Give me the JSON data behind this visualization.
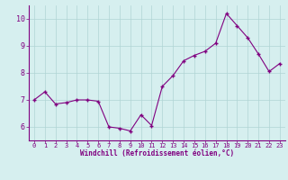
{
  "x": [
    0,
    1,
    2,
    3,
    4,
    5,
    6,
    7,
    8,
    9,
    10,
    11,
    12,
    13,
    14,
    15,
    16,
    17,
    18,
    19,
    20,
    21,
    22,
    23
  ],
  "y": [
    7.0,
    7.3,
    6.85,
    6.9,
    7.0,
    7.0,
    6.95,
    6.0,
    5.95,
    5.85,
    6.45,
    6.05,
    7.5,
    7.9,
    8.45,
    8.65,
    8.8,
    9.1,
    10.2,
    9.75,
    9.3,
    8.7,
    8.05,
    8.35
  ],
  "line_color": "#800080",
  "marker": "+",
  "marker_size": 3,
  "marker_linewidth": 1.0,
  "bg_color": "#d6efef",
  "grid_color": "#b0d4d4",
  "xlabel": "Windchill (Refroidissement éolien,°C)",
  "xlim": [
    -0.5,
    23.5
  ],
  "ylim": [
    5.5,
    10.5
  ],
  "yticks": [
    6,
    7,
    8,
    9,
    10
  ],
  "xticks": [
    0,
    1,
    2,
    3,
    4,
    5,
    6,
    7,
    8,
    9,
    10,
    11,
    12,
    13,
    14,
    15,
    16,
    17,
    18,
    19,
    20,
    21,
    22,
    23
  ],
  "tick_color": "#800080",
  "label_fontsize": 5,
  "xlabel_fontsize": 5.5
}
